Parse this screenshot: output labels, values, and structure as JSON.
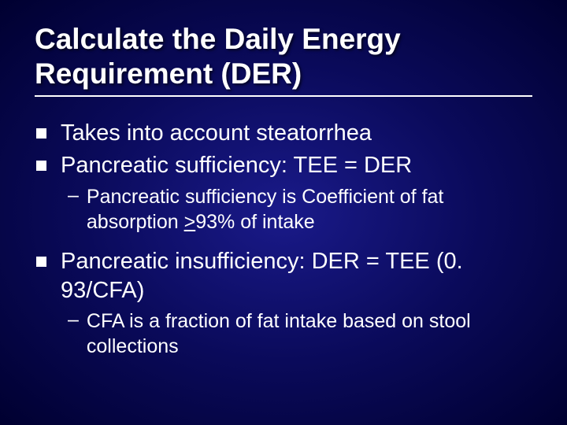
{
  "slide": {
    "background_gradient_center": "#1a1a8a",
    "background_gradient_mid": "#0a0a5a",
    "background_gradient_edge": "#000030",
    "text_color": "#ffffff",
    "bullet_color": "#ffffff",
    "title": "Calculate the Daily Energy Requirement (DER)",
    "title_fontsize": 37,
    "body_fontsize": 29,
    "sub_fontsize": 25,
    "items": [
      {
        "text": "Takes into account steatorrhea",
        "sub": []
      },
      {
        "text": "Pancreatic sufficiency: TEE = DER",
        "sub": [
          {
            "pre": "Pancreatic sufficiency is Coefficient of fat absorption ",
            "underline": ">",
            "post": "93% of intake"
          }
        ]
      },
      {
        "text": "Pancreatic insufficiency: DER = TEE (0. 93/CFA)",
        "sub": [
          {
            "pre": "CFA is a fraction of fat intake based on stool collections",
            "underline": "",
            "post": ""
          }
        ]
      }
    ]
  }
}
